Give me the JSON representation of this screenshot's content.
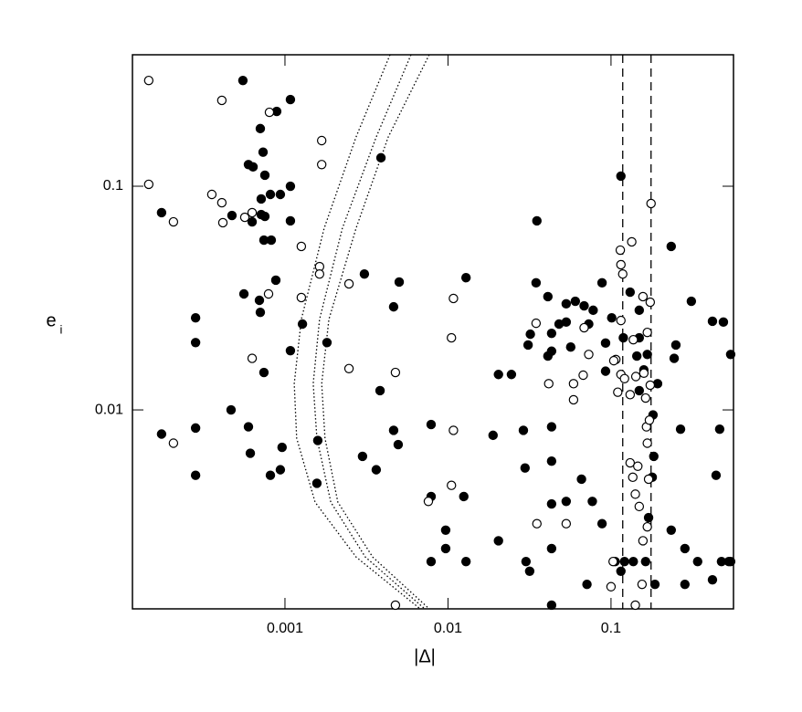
{
  "chart_data": {
    "type": "scatter",
    "xlabel": "|Δ|",
    "ylabel": "e",
    "ylabel_sub": "i",
    "xscale": "log",
    "yscale": "log",
    "xlim": [
      0.000116,
      0.564
    ],
    "ylim": [
      0.00129,
      0.387
    ],
    "xticks": [
      0.001,
      0.01,
      0.1
    ],
    "yticks": [
      0.01,
      0.1
    ],
    "series": [
      {
        "color": "#000000",
        "fill": "#000000",
        "x": [
          0.000552,
          0.00108,
          0.00089,
          0.000706,
          0.000734,
          0.000597,
          0.000637,
          0.000753,
          0.00108,
          0.000814,
          0.000715,
          0.000937,
          0.000175,
          0.000715,
          0.000473,
          0.000753,
          0.00108,
          0.000629,
          0.000743,
          0.000824,
          0.00388,
          0.115,
          0.0351,
          0.00056,
          0.000879,
          0.00307,
          0.00502,
          0.0129,
          0.00464,
          0.000283,
          0.000697,
          0.000706,
          0.00128,
          0.000283,
          0.00108,
          0.00181,
          0.000743,
          0.0347,
          0.00383,
          0.000467,
          0.000175,
          0.000283,
          0.000597,
          0.00096,
          0.000613,
          0.000814,
          0.000937,
          0.000283,
          0.00159,
          0.00157,
          0.00299,
          0.00363,
          0.00464,
          0.00495,
          0.00788,
          0.0189,
          0.029,
          0.0432,
          0.0297,
          0.0432,
          0.032,
          0.031,
          0.0432,
          0.0432,
          0.0204,
          0.00788,
          0.00968,
          0.00788,
          0.00968,
          0.0129,
          0.0204,
          0.0301,
          0.0432,
          0.0317,
          0.0432,
          0.0125,
          0.0432,
          0.0531,
          0.0659,
          0.0768,
          0.0881,
          0.106,
          0.121,
          0.137,
          0.163,
          0.115,
          0.0712,
          0.186,
          0.284,
          0.284,
          0.34,
          0.419,
          0.476,
          0.542,
          0.234,
          0.17,
          0.179,
          0.183,
          0.267,
          0.464,
          0.441,
          0.119,
          0.149,
          0.167,
          0.25,
          0.244,
          0.419,
          0.489,
          0.311,
          0.149,
          0.131,
          0.101,
          0.0881,
          0.0777,
          0.0684,
          0.0604,
          0.0531,
          0.048,
          0.041,
          0.0531,
          0.073,
          0.0926,
          0.144,
          0.159,
          0.193,
          0.149,
          0.181,
          0.542,
          0.234,
          0.041,
          0.0566,
          0.0926,
          0.0245,
          0.528
        ],
        "y": [
          0.297,
          0.244,
          0.216,
          0.181,
          0.142,
          0.125,
          0.122,
          0.112,
          0.1,
          0.0919,
          0.0877,
          0.0919,
          0.0762,
          0.0747,
          0.074,
          0.0733,
          0.07,
          0.0693,
          0.0574,
          0.0574,
          0.134,
          0.111,
          0.07,
          0.033,
          0.038,
          0.0405,
          0.0373,
          0.039,
          0.0289,
          0.0258,
          0.0309,
          0.0273,
          0.0242,
          0.02,
          0.0184,
          0.02,
          0.0147,
          0.037,
          0.0122,
          0.01,
          0.0078,
          0.0083,
          0.0084,
          0.0068,
          0.0064,
          0.0051,
          0.0054,
          0.0051,
          0.0073,
          0.0047,
          0.0062,
          0.0054,
          0.0081,
          0.007,
          0.0086,
          0.0077,
          0.0081,
          0.0084,
          0.0055,
          0.0059,
          0.0218,
          0.0195,
          0.022,
          0.0183,
          0.0144,
          0.0041,
          0.0029,
          0.0021,
          0.0024,
          0.0021,
          0.0026,
          0.0021,
          0.0024,
          0.0019,
          0.00134,
          0.0041,
          0.0038,
          0.0039,
          0.0049,
          0.0039,
          0.0031,
          0.0021,
          0.0021,
          0.0021,
          0.0021,
          0.0019,
          0.00166,
          0.00166,
          0.00166,
          0.0024,
          0.0021,
          0.00174,
          0.0021,
          0.0021,
          0.0029,
          0.0033,
          0.005,
          0.0062,
          0.0082,
          0.0082,
          0.0051,
          0.021,
          0.021,
          0.0177,
          0.0195,
          0.017,
          0.0249,
          0.0247,
          0.0306,
          0.0279,
          0.0336,
          0.0258,
          0.037,
          0.0279,
          0.0292,
          0.0306,
          0.0298,
          0.0242,
          0.0321,
          0.0247,
          0.0242,
          0.0199,
          0.0174,
          0.0151,
          0.0131,
          0.0122,
          0.0095,
          0.0177,
          0.0538,
          0.0174,
          0.0191,
          0.0149,
          0.0144,
          0.0021
        ]
      },
      {
        "color": "#000000",
        "fill": "#ffffff",
        "x": [
          0.000146,
          0.00041,
          0.000803,
          0.00168,
          0.00168,
          0.000146,
          0.000356,
          0.00041,
          0.000629,
          0.000416,
          0.000207,
          0.000567,
          0.00126,
          0.00163,
          0.00163,
          0.00247,
          0.000793,
          0.00126,
          0.000629,
          0.00247,
          0.00476,
          0.0108,
          0.0105,
          0.000207,
          0.0108,
          0.0105,
          0.00758,
          0.0351,
          0.0531,
          0.00476,
          0.141,
          0.0347,
          0.0415,
          0.0589,
          0.0589,
          0.0675,
          0.073,
          0.0684,
          0.107,
          0.115,
          0.121,
          0.114,
          0.115,
          0.118,
          0.134,
          0.157,
          0.174,
          0.167,
          0.137,
          0.159,
          0.174,
          0.163,
          0.142,
          0.131,
          0.176,
          0.115,
          0.104,
          0.11,
          0.165,
          0.167,
          0.131,
          0.136,
          0.146,
          0.141,
          0.17,
          0.167,
          0.157,
          0.149,
          0.172,
          0.103,
          0.1,
          0.155
        ],
        "y": [
          0.297,
          0.242,
          0.214,
          0.16,
          0.125,
          0.102,
          0.0919,
          0.0844,
          0.0762,
          0.0687,
          0.0693,
          0.0726,
          0.0538,
          0.0437,
          0.0405,
          0.0366,
          0.033,
          0.0318,
          0.017,
          0.0153,
          0.0147,
          0.0315,
          0.021,
          0.0071,
          0.0081,
          0.0046,
          0.0039,
          0.0031,
          0.0031,
          0.00134,
          0.00134,
          0.0244,
          0.0131,
          0.0111,
          0.0131,
          0.0143,
          0.0177,
          0.0233,
          0.0168,
          0.0144,
          0.0138,
          0.0518,
          0.0446,
          0.0405,
          0.0564,
          0.0321,
          0.0303,
          0.0222,
          0.0206,
          0.0146,
          0.0129,
          0.0113,
          0.0141,
          0.0117,
          0.0837,
          0.0251,
          0.0166,
          0.012,
          0.0084,
          0.0071,
          0.0058,
          0.005,
          0.0056,
          0.0042,
          0.0049,
          0.003,
          0.0026,
          0.0037,
          0.009,
          0.0021,
          0.00162,
          0.00166
        ]
      }
    ],
    "curves": [
      {
        "style": "dotted",
        "x": [
          0.00441,
          0.00273,
          0.00174,
          0.00126,
          0.00114,
          0.00118,
          0.00153,
          0.00273,
          0.00675
        ],
        "y": [
          0.387,
          0.166,
          0.0649,
          0.0254,
          0.0131,
          0.00747,
          0.00387,
          0.0022,
          0.00129
        ]
      },
      {
        "style": "dotted",
        "x": [
          0.00593,
          0.00363,
          0.00225,
          0.00163,
          0.00149,
          0.00157,
          0.00191,
          0.00311,
          0.0072
        ],
        "y": [
          0.387,
          0.166,
          0.0649,
          0.0254,
          0.0131,
          0.00747,
          0.00387,
          0.0022,
          0.00129
        ]
      },
      {
        "style": "dotted",
        "x": [
          0.00767,
          0.0043,
          0.00273,
          0.00186,
          0.00168,
          0.00176,
          0.00211,
          0.00345,
          0.00767
        ],
        "y": [
          0.387,
          0.166,
          0.0649,
          0.0254,
          0.0131,
          0.00747,
          0.00387,
          0.0022,
          0.00129
        ]
      }
    ],
    "vlines": [
      0.118,
      0.176
    ],
    "vline_style": "dashed"
  }
}
